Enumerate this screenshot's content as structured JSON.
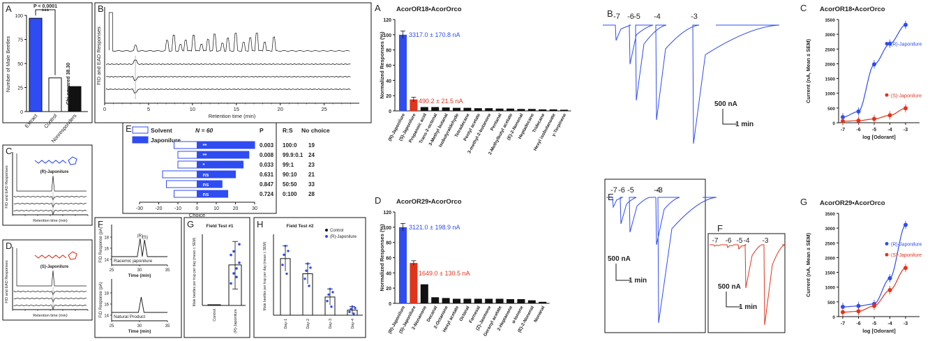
{
  "colors": {
    "blue": "#2f4cf2",
    "red": "#e0341c",
    "black": "#111111",
    "gray": "#555555"
  },
  "chart_data": [
    {
      "id": "A_left",
      "type": "bar",
      "letter": "A",
      "ylabel": "Number of Male Beetles",
      "ylim": [
        0,
        100
      ],
      "yticks": [
        0,
        25,
        50,
        75,
        100
      ],
      "categories": [
        "Extract",
        "Control",
        "Nonresponders"
      ],
      "values": [
        97,
        35,
        26
      ],
      "bar_colors": [
        "blue",
        "white",
        "black"
      ],
      "annotations": {
        "pvalue": "P < 0.0001",
        "stars": "***",
        "chisq": "Chi-squared 38.30"
      }
    },
    {
      "id": "B_left",
      "type": "line",
      "letter": "B",
      "ylabel": "FID and EAD Responses",
      "xlabel": "Retention time (min)",
      "xlim": [
        0,
        29
      ],
      "xticks": [
        0,
        5,
        10,
        15,
        20,
        25
      ],
      "peaks_min": [
        3.5,
        7.1,
        7.9,
        8.6,
        9.3,
        10.2,
        11.0,
        11.8,
        12.6,
        13.4,
        14.1,
        15.0,
        15.8,
        16.6,
        17.4,
        18.3,
        19.2
      ]
    },
    {
      "id": "C_left",
      "type": "line",
      "letter": "C",
      "compound": "(R)-Japonilure",
      "ylabel": "FID and EAD Responses",
      "xlabel": "Retention time (min)"
    },
    {
      "id": "D_left",
      "type": "line",
      "letter": "D",
      "compound": "(S)-Japonilure",
      "ylabel": "FID and EAD Responses",
      "xlabel": "Retention time (min)"
    },
    {
      "id": "E_left",
      "type": "bar",
      "letter": "E",
      "legend": [
        "Solvent",
        "Japonilure"
      ],
      "n_label": "N = 60",
      "headers": {
        "p": "P",
        "rs": "R:S",
        "nochoice": "No choice"
      },
      "xlabel": "Choice",
      "xlim": [
        -30,
        30
      ],
      "xticks": [
        -30,
        -20,
        -10,
        0,
        10,
        20,
        30
      ],
      "rows": [
        {
          "solvent": -12,
          "japonilure": 30,
          "sig": "**",
          "p": "0.003",
          "rs": "100:0",
          "nochoice": "19"
        },
        {
          "solvent": -10,
          "japonilure": 27,
          "sig": "**",
          "p": "0.008",
          "rs": "99.9:0.1",
          "nochoice": "24"
        },
        {
          "solvent": -10,
          "japonilure": 24,
          "sig": "*",
          "p": "0.033",
          "rs": "99:1",
          "nochoice": "23"
        },
        {
          "solvent": -18,
          "japonilure": 20,
          "sig": "ns",
          "p": "0.631",
          "rs": "90:10",
          "nochoice": "21"
        },
        {
          "solvent": -16,
          "japonilure": 13,
          "sig": "ns",
          "p": "0.847",
          "rs": "50:50",
          "nochoice": "33"
        },
        {
          "solvent": -12,
          "japonilure": 16,
          "sig": "ns",
          "p": "0.724",
          "rs": "0:100",
          "nochoice": "28"
        }
      ]
    },
    {
      "id": "F_left",
      "type": "line",
      "letter": "F",
      "ylabel": "FID Response (pA)",
      "xlabel": "Time (min)",
      "xticks": [
        25,
        30,
        35
      ],
      "top_yticks": [
        14,
        16,
        18
      ],
      "bottom_yticks": [
        14,
        16,
        18
      ],
      "top_label": "Racemic japonilure",
      "bottom_label": "Natural Product",
      "peak_labels": [
        "(R)",
        "(S)"
      ]
    },
    {
      "id": "G_left",
      "type": "bar",
      "letter": "G",
      "title": "Field Test #1",
      "ylabel": "Male beetles per trap per day (mean ± SEM)",
      "categories": [
        "Control",
        "(R)-Japonilure"
      ],
      "values": [
        0.1,
        5.7
      ],
      "ylim": [
        0,
        10
      ]
    },
    {
      "id": "H_left",
      "type": "bar",
      "letter": "H",
      "title": "Field Test #2",
      "ylabel": "Male beetles per trap per day (mean ± SEM)",
      "legend": [
        "Control",
        "(R)-Japonilure"
      ],
      "categories": [
        "Day-1",
        "Day-2",
        "Day-3",
        "Day-4"
      ],
      "series": [
        {
          "name": "Control",
          "values": [
            0.1,
            0.1,
            0.1,
            0.1
          ]
        },
        {
          "name": "(R)-Japonilure",
          "values": [
            11.2,
            8.2,
            3.6,
            1.0
          ]
        }
      ],
      "ylim": [
        0,
        16
      ]
    },
    {
      "id": "A_right",
      "type": "bar",
      "letter": "A",
      "title": "AcorOR18•AcorOrco",
      "ylabel": "Normalized Responses (%)",
      "ylim": [
        0,
        120
      ],
      "yticks": [
        0,
        20,
        40,
        60,
        80,
        100,
        120
      ],
      "categories": [
        "(R)-Japonilure",
        "(S)-Japonilure",
        "Propanoic acid",
        "Trans-2-octenal",
        "3-Methyl butanal",
        "Isobutyraldehyde",
        "Tetradecane",
        "Pentyl acetate",
        "3-methyl-2-butanone",
        "Pentanal",
        "2-Methylbutyl acetate",
        "(E)-2-Nonenal",
        "Heptadecane",
        "Tridecane",
        "Hexyl isobutanoate",
        "γ-Terpinene"
      ],
      "values": [
        100,
        15,
        5,
        5,
        4.5,
        4,
        4,
        3.5,
        3.5,
        3,
        3,
        2.5,
        2.5,
        2,
        2,
        1.5
      ],
      "annotations": [
        "3317.0 ± 170.8 nA",
        "490.2 ± 21.5 nA"
      ]
    },
    {
      "id": "B_right",
      "type": "line",
      "letter": "B",
      "concentrations": [
        "-7",
        "-6",
        "-5",
        "-4",
        "-3"
      ],
      "scale_current": "500 nA",
      "scale_time": "1 min"
    },
    {
      "id": "C_right",
      "type": "line",
      "letter": "C",
      "title": "AcorOR18•AcorOrco",
      "ylabel": "Current (nA, Mean ± SEM)",
      "xlabel": "log [Odorant]",
      "x": [
        -7,
        -6,
        -5,
        -4,
        -3
      ],
      "xticks": [
        -7,
        -6,
        -5,
        -4,
        -3
      ],
      "ylim": [
        0,
        3500
      ],
      "yticks": [
        0,
        500,
        1000,
        1500,
        2000,
        2500,
        3000,
        3500
      ],
      "series": [
        {
          "name": "(R)-Japonilure",
          "values": [
            190,
            380,
            1980,
            2680,
            3320
          ]
        },
        {
          "name": "(S)-Japonilure",
          "values": [
            50,
            70,
            130,
            250,
            490
          ]
        }
      ]
    },
    {
      "id": "D_right",
      "type": "bar",
      "letter": "D",
      "title": "AcorOR29•AcorOrco",
      "ylabel": "Normalized Responses (%)",
      "ylim": [
        0,
        120
      ],
      "yticks": [
        0,
        20,
        40,
        60,
        80,
        100,
        120
      ],
      "categories": [
        "(R)-Japonilure",
        "(S)-Japonilure",
        "2-Nonanone",
        "Decanal",
        "2-Octanone",
        "Hexyl acetate",
        "Octanal",
        "Farnesal",
        "(Z)-Jasmone",
        "Geranyl acetate",
        "2-Heptanone",
        "α-Ionone",
        "(E)-2-Nonenal",
        "Nonanal"
      ],
      "values": [
        100,
        53,
        25,
        8,
        7,
        6,
        6,
        6,
        6,
        6,
        5.5,
        5.5,
        4,
        2
      ],
      "annotations": [
        "3121.0 ± 198.9 nA",
        "1649.0 ± 130.5 nA"
      ]
    },
    {
      "id": "E_right",
      "type": "line",
      "letter": "E",
      "concentrations": [
        "-7",
        "-6",
        "-5",
        "-4",
        "-3"
      ],
      "scale_current": "500 nA",
      "scale_time": "1 min"
    },
    {
      "id": "F_right",
      "type": "line",
      "letter": "F",
      "concentrations": [
        "-7",
        "-6",
        "-5",
        "-4",
        "-3"
      ],
      "scale_current": "500 nA",
      "scale_time": "1 min"
    },
    {
      "id": "G_right",
      "type": "line",
      "letter": "G",
      "title": "AcorOR29•AcorOrco",
      "ylabel": "Current (nA, Mean ± SEM)",
      "xlabel": "log [Odorant]",
      "x": [
        -7,
        -6,
        -5,
        -4,
        -3
      ],
      "xticks": [
        -7,
        -6,
        -5,
        -4,
        -3
      ],
      "ylim": [
        0,
        3500
      ],
      "yticks": [
        0,
        500,
        1000,
        1500,
        2000,
        2500,
        3000,
        3500
      ],
      "series": [
        {
          "name": "(R)-Japonilure",
          "values": [
            330,
            360,
            430,
            1300,
            3110
          ]
        },
        {
          "name": "(S)-Japonilure",
          "values": [
            150,
            180,
            360,
            900,
            1650
          ]
        }
      ]
    }
  ]
}
